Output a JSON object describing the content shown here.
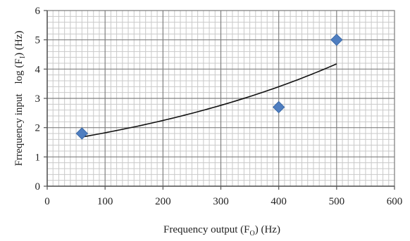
{
  "chart_data": {
    "type": "scatter",
    "title": "",
    "xlabel": {
      "main": "Frequency output (F",
      "sub": "O",
      "tail": ") (Hz)"
    },
    "ylabel": {
      "part1": "Frrequency input",
      "part2_main": "log (F",
      "part2_sub": "I",
      "part2_tail": ") (Hz)"
    },
    "xlim": [
      0,
      600
    ],
    "ylim": [
      0,
      6
    ],
    "x_ticks": [
      "0",
      "100",
      "200",
      "300",
      "400",
      "500",
      "600"
    ],
    "y_ticks": [
      "0",
      "1",
      "2",
      "3",
      "4",
      "5",
      "6"
    ],
    "grid": true,
    "series": [
      {
        "marker": "diamond",
        "color": "#4f7ec0",
        "points": [
          {
            "x": 60,
            "y": 1.8
          },
          {
            "x": 400,
            "y": 2.7
          },
          {
            "x": 500,
            "y": 5.0
          }
        ]
      }
    ],
    "trendline": {
      "type": "exponential",
      "color": "#111111",
      "x_range": [
        60,
        500
      ],
      "y_range": [
        1.68,
        4.18
      ]
    }
  }
}
